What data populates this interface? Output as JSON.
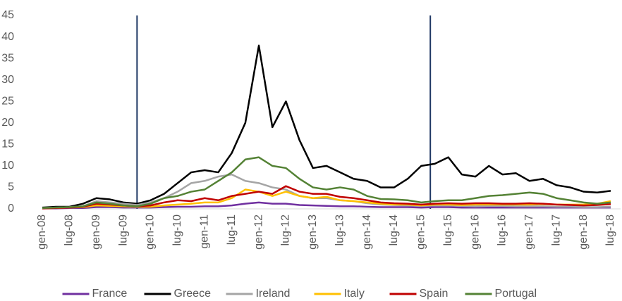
{
  "chart_data": {
    "type": "line",
    "categories": [
      "gen-08",
      null,
      "lug-08",
      null,
      "gen-09",
      null,
      "lug-09",
      null,
      "gen-10",
      null,
      "lug-10",
      null,
      "gen-11",
      null,
      "lug-11",
      null,
      "gen-12",
      null,
      "lug-12",
      null,
      "gen-13",
      null,
      "lug-13",
      null,
      "gen-14",
      null,
      "lug-14",
      null,
      "gen-15",
      null,
      "lug-15",
      null,
      "gen-16",
      null,
      "lug-16",
      null,
      "gen-17",
      null,
      "lug-17",
      null,
      "gen-18",
      null,
      "lug-18"
    ],
    "series": [
      {
        "name": "France",
        "color": "#7030a0",
        "values": [
          0.1,
          0.1,
          0.2,
          0.2,
          0.4,
          0.4,
          0.3,
          0.3,
          0.3,
          0.4,
          0.5,
          0.5,
          0.6,
          0.6,
          0.8,
          1.2,
          1.5,
          1.2,
          1.2,
          0.9,
          0.8,
          0.7,
          0.6,
          0.6,
          0.5,
          0.4,
          0.4,
          0.4,
          0.3,
          0.4,
          0.4,
          0.3,
          0.3,
          0.3,
          0.3,
          0.3,
          0.3,
          0.3,
          0.3,
          0.3,
          0.3,
          0.3,
          0.3
        ]
      },
      {
        "name": "Greece",
        "color": "#000000",
        "values": [
          0.3,
          0.5,
          0.5,
          1.2,
          2.5,
          2.2,
          1.5,
          1.2,
          2.0,
          3.5,
          6.0,
          8.5,
          9.0,
          8.5,
          13.0,
          20.0,
          38.0,
          19.0,
          25.0,
          16.0,
          9.5,
          10.0,
          8.5,
          7.0,
          6.5,
          5.0,
          5.0,
          7.0,
          10.0,
          10.5,
          12.0,
          8.0,
          7.5,
          10.0,
          8.0,
          8.3,
          6.5,
          7.0,
          5.5,
          5.0,
          4.0,
          3.8,
          4.2
        ]
      },
      {
        "name": "Ireland",
        "color": "#a5a5a5",
        "values": [
          0.2,
          0.3,
          0.4,
          0.6,
          1.8,
          1.5,
          1.2,
          0.9,
          1.5,
          2.5,
          4.0,
          6.0,
          6.5,
          7.5,
          8.0,
          6.5,
          6.0,
          5.0,
          4.5,
          3.0,
          2.5,
          2.5,
          2.0,
          1.8,
          1.3,
          1.0,
          0.9,
          0.8,
          0.7,
          0.8,
          0.8,
          0.7,
          0.6,
          0.7,
          0.7,
          0.6,
          0.6,
          0.6,
          0.5,
          0.5,
          0.4,
          0.4,
          0.5
        ]
      },
      {
        "name": "Italy",
        "color": "#ffc000",
        "values": [
          0.1,
          0.2,
          0.3,
          0.4,
          0.8,
          0.7,
          0.6,
          0.5,
          0.5,
          0.8,
          1.0,
          1.2,
          1.5,
          1.5,
          2.5,
          4.5,
          4.0,
          3.0,
          4.0,
          3.0,
          2.5,
          2.8,
          2.0,
          1.8,
          1.5,
          1.2,
          1.0,
          1.0,
          0.8,
          1.0,
          1.0,
          0.9,
          1.0,
          1.0,
          1.0,
          1.0,
          1.0,
          1.1,
          1.0,
          1.0,
          1.0,
          1.2,
          1.8
        ]
      },
      {
        "name": "Spain",
        "color": "#c00000",
        "values": [
          0.1,
          0.2,
          0.3,
          0.5,
          1.2,
          1.0,
          0.8,
          0.6,
          0.8,
          1.5,
          2.0,
          1.8,
          2.5,
          2.0,
          3.0,
          3.5,
          4.0,
          3.5,
          5.3,
          4.0,
          3.5,
          3.5,
          2.8,
          2.5,
          2.0,
          1.5,
          1.3,
          1.2,
          1.0,
          1.2,
          1.3,
          1.2,
          1.3,
          1.3,
          1.2,
          1.2,
          1.3,
          1.2,
          1.0,
          0.9,
          0.8,
          0.9,
          1.1
        ]
      },
      {
        "name": "Portugal",
        "color": "#548235",
        "values": [
          0.2,
          0.3,
          0.4,
          0.6,
          1.5,
          1.2,
          0.8,
          0.6,
          1.2,
          2.5,
          3.0,
          4.0,
          4.5,
          6.5,
          8.5,
          11.5,
          12.0,
          10.0,
          9.5,
          7.0,
          5.0,
          4.5,
          5.0,
          4.5,
          3.0,
          2.3,
          2.2,
          2.0,
          1.5,
          1.8,
          2.0,
          2.0,
          2.5,
          3.0,
          3.2,
          3.5,
          3.8,
          3.5,
          2.5,
          2.0,
          1.5,
          1.2,
          1.5
        ]
      }
    ],
    "vlines": [
      7,
      28.67
    ],
    "vline_color": "#1f3864",
    "ylim": [
      0,
      45
    ],
    "yticks": [
      0,
      5,
      10,
      15,
      20,
      25,
      30,
      35,
      40,
      45
    ],
    "legend": "bottom"
  }
}
